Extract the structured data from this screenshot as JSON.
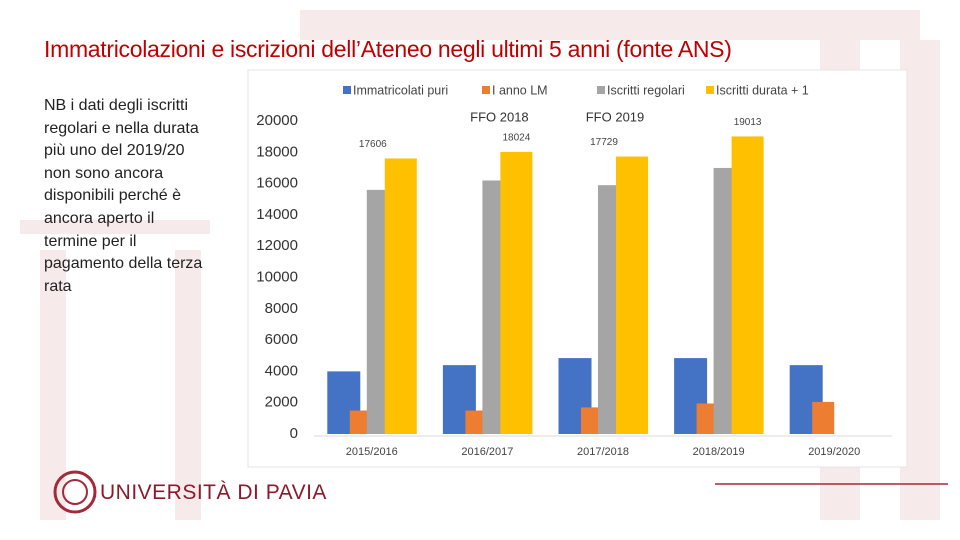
{
  "slide": {
    "title": "Immatricolazioni e iscrizioni dell’Ateneo negli ultimi 5 anni (fonte ANS)",
    "note": [
      "NB i dati degli iscritti",
      "regolari e nella durata",
      "più uno del 2019/20",
      "non sono ancora",
      "disponibili perché è",
      "ancora aperto il",
      "termine per il",
      "pagamento della terza",
      "rata"
    ],
    "logo": "UNIVERSITÀ DI PAVIA"
  },
  "chart_data": {
    "type": "bar",
    "categories": [
      "2015/2016",
      "2016/2017",
      "2017/2018",
      "2018/2019",
      "2019/2020"
    ],
    "series": [
      {
        "name": "Immatricolati puri",
        "color": "#4472c4",
        "values": [
          4000,
          4400,
          4850,
          4850,
          4400
        ]
      },
      {
        "name": "I anno LM",
        "color": "#ed7d31",
        "values": [
          1500,
          1500,
          1700,
          1950,
          2050
        ]
      },
      {
        "name": "Iscritti regolari",
        "color": "#a5a5a5",
        "values": [
          15600,
          16200,
          15900,
          17000,
          null
        ]
      },
      {
        "name": "Iscritti durata + 1",
        "color": "#ffc000",
        "values": [
          17606,
          18024,
          17729,
          19013,
          null
        ],
        "data_labels": true
      }
    ],
    "annotations": [
      {
        "text": "FFO 2018",
        "category": "2016/2017"
      },
      {
        "text": "FFO 2019",
        "category": "2017/2018"
      }
    ],
    "ylim": [
      0,
      20000
    ],
    "yticks": [
      0,
      2000,
      4000,
      6000,
      8000,
      10000,
      12000,
      14000,
      16000,
      18000,
      20000
    ],
    "grid": false,
    "legend": "top"
  }
}
